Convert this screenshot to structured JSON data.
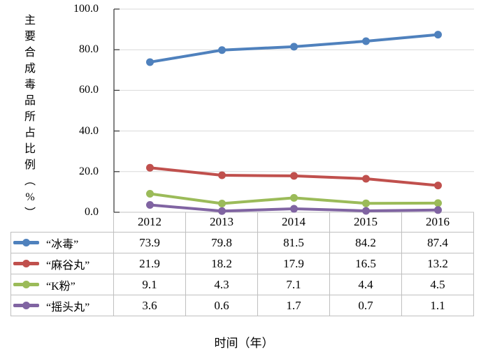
{
  "chart_data": {
    "type": "line",
    "title": "",
    "xlabel": "时间（年）",
    "ylabel": "主要合成毒品所占比例（%）",
    "ylabel_chars": [
      "主",
      "要",
      "合",
      "成",
      "毒",
      "品",
      "所",
      "占",
      "比",
      "例",
      "︵",
      "%",
      "︶"
    ],
    "categories": [
      "2012",
      "2013",
      "2014",
      "2015",
      "2016"
    ],
    "series": [
      {
        "name": "“冰毒”",
        "values": [
          73.9,
          79.8,
          81.5,
          84.2,
          87.4
        ],
        "color": "#4F81BD"
      },
      {
        "name": "“麻谷丸”",
        "values": [
          21.9,
          18.2,
          17.9,
          16.5,
          13.2
        ],
        "color": "#C0504D"
      },
      {
        "name": "“K粉”",
        "values": [
          9.1,
          4.3,
          7.1,
          4.4,
          4.5
        ],
        "color": "#9BBB59"
      },
      {
        "name": "“摇头丸”",
        "values": [
          3.6,
          0.6,
          1.7,
          0.7,
          1.1
        ],
        "color": "#8064A2"
      }
    ],
    "yticks": [
      "100.0",
      "80.0",
      "60.0",
      "40.0",
      "20.0",
      "0.0"
    ],
    "ylim": [
      0,
      100
    ],
    "grid": true,
    "legend_position": "table-left",
    "colors": {
      "grid": "#D9D9D9",
      "axis": "#404040",
      "x_axis": "#C0C0C0",
      "table_border": "#BFBFBF",
      "text": "#000000"
    }
  }
}
